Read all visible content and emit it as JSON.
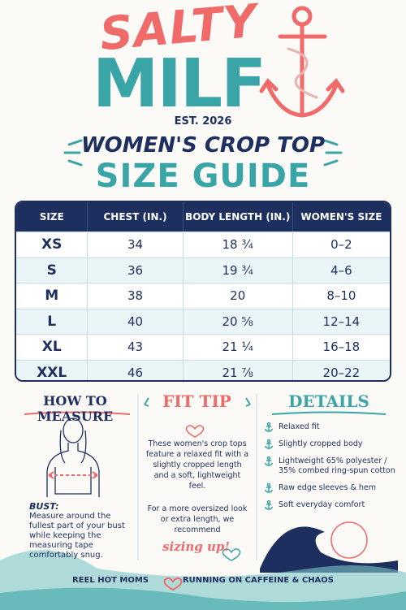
{
  "brand": {
    "top": "SALTY",
    "bottom": "MILF",
    "est": "EST. 2026"
  },
  "title": {
    "line1": "WOMEN'S CROP TOP",
    "line2": "SIZE GUIDE"
  },
  "table": {
    "headers": [
      "SIZE",
      "CHEST (IN.)",
      "BODY LENGTH (IN.)",
      "WOMEN'S SIZE"
    ],
    "rows": [
      [
        "XS",
        "34",
        "18 ¾",
        "0–2"
      ],
      [
        "S",
        "36",
        "19 ¾",
        "4–6"
      ],
      [
        "M",
        "38",
        "20",
        "8–10"
      ],
      [
        "L",
        "40",
        "20 ⅝",
        "12–14"
      ],
      [
        "XL",
        "43",
        "21 ¼",
        "16–18"
      ],
      [
        "XXL",
        "46",
        "21 ⅞",
        "20–22"
      ]
    ]
  },
  "how_to_measure": {
    "title": "HOW TO MEASURE",
    "label": "BUST:",
    "text": "Measure around the fullest part of your bust while keeping the measuring tape comfortably snug."
  },
  "fit_tip": {
    "title": "FIT TIP",
    "text1": "These women's crop tops feature a relaxed fit with a slightly cropped length and a soft, lightweight feel.",
    "text2": "For a more oversized look or extra length, we recommend",
    "handwritten": "sizing up!"
  },
  "details": {
    "title": "DETAILS",
    "items": [
      "Relaxed fit",
      "Slightly cropped body",
      "Lightweight 65% polyester / 35% combed ring-spun cotton",
      "Raw edge sleeves & hem",
      "Soft everyday comfort"
    ]
  },
  "footer": {
    "left": "REEL HOT MOMS",
    "right": "RUNNING ON CAFFEINE & CHAOS"
  }
}
